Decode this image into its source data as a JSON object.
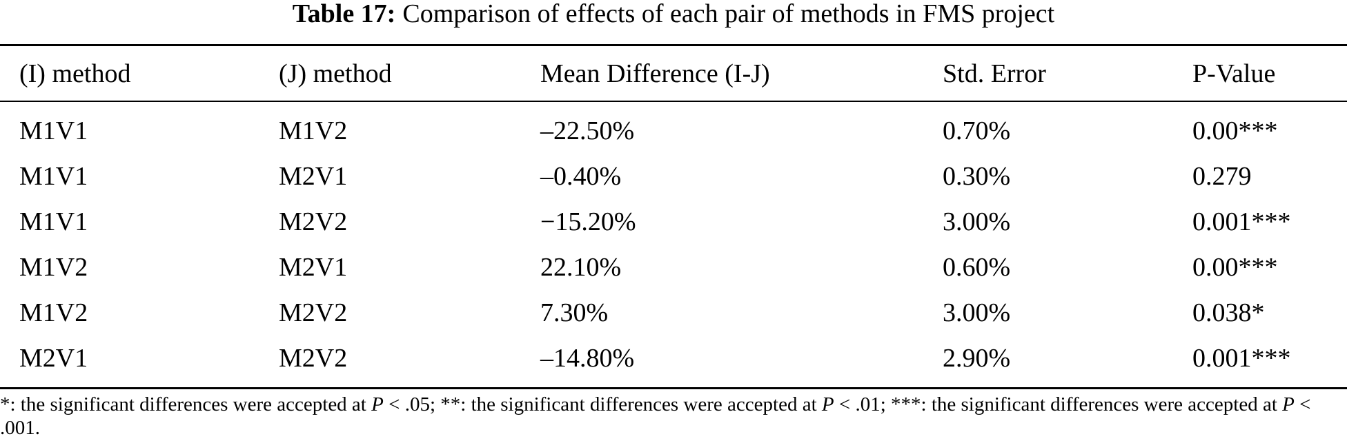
{
  "caption": {
    "label": "Table 17:",
    "text": "Comparison of effects of each pair of methods in FMS project"
  },
  "table": {
    "headers": [
      "(I) method",
      "(J) method",
      "Mean Difference (I-J)",
      "Std. Error",
      "P-Value"
    ],
    "rows": [
      [
        "M1V1",
        "M1V2",
        "–22.50%",
        "0.70%",
        "0.00***"
      ],
      [
        "M1V1",
        "M2V1",
        "–0.40%",
        "0.30%",
        "0.279"
      ],
      [
        "M1V1",
        "M2V2",
        "−15.20%",
        "3.00%",
        "0.001***"
      ],
      [
        "M1V2",
        "M2V1",
        "22.10%",
        "0.60%",
        "0.00***"
      ],
      [
        "M1V2",
        "M2V2",
        "7.30%",
        "3.00%",
        "0.038*"
      ],
      [
        "M2V1",
        "M2V2",
        "–14.80%",
        "2.90%",
        "0.001***"
      ]
    ]
  },
  "footnote": {
    "part1": "*: the significant differences were accepted at ",
    "p1": "P",
    "part2": " < .05; **: the significant differences were accepted at ",
    "p2": "P",
    "part3": " < .01; ***: the significant differences were accepted at ",
    "p3": "P",
    "part4": " < .001."
  }
}
